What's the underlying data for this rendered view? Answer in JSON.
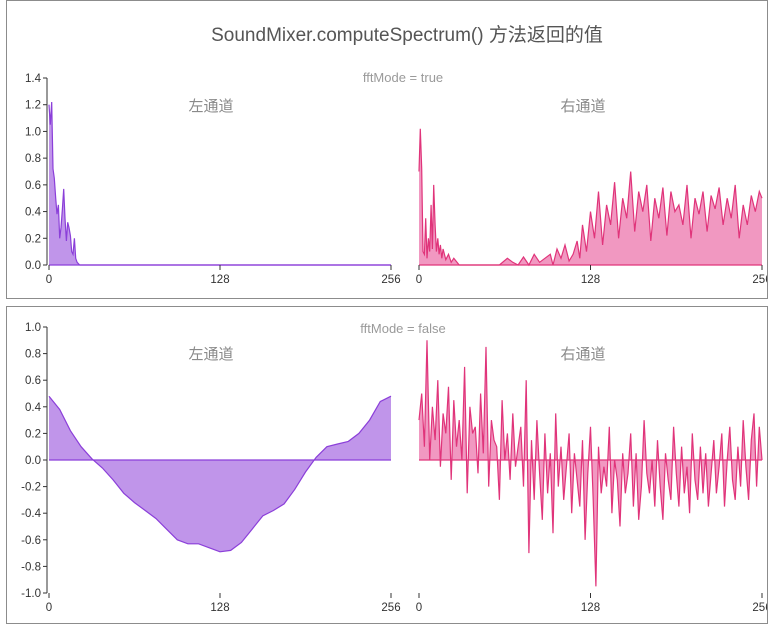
{
  "chart_title": "SoundMixer.computeSpectrum() 方法返回的值",
  "colors": {
    "left": "#8b3fd9",
    "left_fill": "#b98ae8",
    "right": "#e0347a",
    "right_fill": "#f08dba"
  },
  "chart_data": [
    {
      "type": "area",
      "subtitle": "fftMode = true",
      "x_ticks": [
        "0",
        "128",
        "256"
      ],
      "y_ticks": [
        "0.0",
        "0.2",
        "0.4",
        "0.6",
        "0.8",
        "1.0",
        "1.2",
        "1.4"
      ],
      "ylim": [
        0,
        1.4
      ],
      "xlim": [
        0,
        256
      ],
      "series": [
        {
          "name": "左通道",
          "x": [
            0,
            1,
            2,
            3,
            4,
            5,
            6,
            7,
            8,
            9,
            10,
            11,
            12,
            13,
            14,
            15,
            16,
            17,
            18,
            19,
            20,
            21,
            22,
            23,
            24,
            30,
            60,
            128,
            256
          ],
          "values": [
            1.2,
            1.05,
            1.22,
            0.72,
            0.65,
            0.5,
            0.38,
            0.45,
            0.2,
            0.28,
            0.42,
            0.57,
            0.35,
            0.18,
            0.32,
            0.28,
            0.22,
            0.1,
            0.08,
            0.2,
            0.05,
            0.02,
            0.01,
            0.0,
            0.0,
            0.0,
            0.0,
            0.0,
            0.0
          ]
        },
        {
          "name": "右通道",
          "x": [
            0,
            1,
            2,
            3,
            4,
            5,
            6,
            7,
            8,
            9,
            10,
            11,
            12,
            13,
            14,
            15,
            16,
            17,
            18,
            20,
            22,
            24,
            26,
            30,
            40,
            50,
            60,
            66,
            70,
            74,
            78,
            82,
            86,
            90,
            94,
            98,
            100,
            103,
            106,
            109,
            112,
            115,
            118,
            120,
            122,
            125,
            128,
            131,
            134,
            137,
            140,
            143,
            146,
            149,
            152,
            155,
            158,
            161,
            164,
            167,
            170,
            173,
            176,
            179,
            182,
            185,
            188,
            191,
            194,
            197,
            200,
            203,
            206,
            209,
            212,
            215,
            218,
            221,
            224,
            227,
            230,
            233,
            236,
            239,
            242,
            245,
            248,
            251,
            254,
            256
          ],
          "values": [
            0.7,
            1.02,
            0.72,
            0.1,
            0.08,
            0.35,
            0.05,
            0.2,
            0.1,
            0.45,
            0.12,
            0.6,
            0.3,
            0.1,
            0.2,
            0.08,
            0.15,
            0.05,
            0.12,
            0.04,
            0.08,
            0.02,
            0.05,
            0.0,
            0.0,
            0.0,
            0.0,
            0.05,
            0.02,
            0.0,
            0.06,
            0.0,
            0.08,
            0.02,
            0.05,
            0.08,
            0.0,
            0.12,
            0.05,
            0.15,
            0.03,
            0.08,
            0.18,
            0.05,
            0.3,
            0.1,
            0.4,
            0.2,
            0.55,
            0.15,
            0.45,
            0.3,
            0.62,
            0.2,
            0.5,
            0.35,
            0.7,
            0.25,
            0.55,
            0.4,
            0.6,
            0.18,
            0.5,
            0.35,
            0.58,
            0.22,
            0.55,
            0.4,
            0.45,
            0.3,
            0.6,
            0.2,
            0.5,
            0.38,
            0.55,
            0.25,
            0.52,
            0.42,
            0.58,
            0.3,
            0.5,
            0.35,
            0.6,
            0.2,
            0.45,
            0.3,
            0.52,
            0.4,
            0.55,
            0.5
          ]
        }
      ]
    },
    {
      "type": "area",
      "subtitle": "fftMode = false",
      "x_ticks": [
        "0",
        "128",
        "256"
      ],
      "y_ticks": [
        "1.0",
        "0.8",
        "0.6",
        "0.4",
        "0.2",
        "0.0",
        "-0.2",
        "-0.4",
        "-0.6",
        "-0.8",
        "-1.0"
      ],
      "ylim": [
        -1.0,
        1.0
      ],
      "xlim": [
        0,
        256
      ],
      "series": [
        {
          "name": "左通道",
          "x": [
            0,
            8,
            16,
            24,
            32,
            40,
            48,
            56,
            64,
            72,
            80,
            88,
            96,
            104,
            112,
            120,
            128,
            136,
            144,
            152,
            160,
            168,
            176,
            184,
            192,
            200,
            208,
            216,
            224,
            232,
            240,
            248,
            256
          ],
          "values": [
            0.48,
            0.38,
            0.22,
            0.1,
            0.01,
            -0.06,
            -0.15,
            -0.25,
            -0.32,
            -0.38,
            -0.44,
            -0.52,
            -0.6,
            -0.63,
            -0.63,
            -0.66,
            -0.69,
            -0.68,
            -0.62,
            -0.52,
            -0.42,
            -0.38,
            -0.33,
            -0.22,
            -0.09,
            0.02,
            0.1,
            0.12,
            0.14,
            0.2,
            0.3,
            0.44,
            0.48
          ]
        },
        {
          "name": "右通道",
          "x": [
            0,
            2,
            4,
            6,
            8,
            10,
            12,
            14,
            16,
            18,
            20,
            22,
            24,
            26,
            28,
            30,
            32,
            34,
            36,
            38,
            40,
            42,
            44,
            46,
            48,
            50,
            52,
            54,
            56,
            58,
            60,
            62,
            64,
            66,
            68,
            70,
            72,
            74,
            76,
            78,
            80,
            82,
            84,
            86,
            88,
            90,
            92,
            94,
            96,
            98,
            100,
            102,
            104,
            106,
            108,
            110,
            112,
            114,
            116,
            118,
            120,
            122,
            124,
            126,
            128,
            130,
            132,
            134,
            136,
            138,
            140,
            142,
            144,
            146,
            148,
            150,
            152,
            154,
            156,
            158,
            160,
            162,
            164,
            166,
            168,
            170,
            172,
            174,
            176,
            178,
            180,
            182,
            184,
            186,
            188,
            190,
            192,
            194,
            196,
            198,
            200,
            202,
            204,
            206,
            208,
            210,
            212,
            214,
            216,
            218,
            220,
            222,
            224,
            226,
            228,
            230,
            232,
            234,
            236,
            238,
            240,
            242,
            244,
            246,
            248,
            250,
            252,
            254,
            256
          ],
          "values": [
            0.3,
            0.5,
            0.1,
            0.9,
            0.0,
            0.4,
            0.15,
            0.6,
            -0.05,
            0.35,
            0.2,
            0.55,
            -0.15,
            0.45,
            0.1,
            0.3,
            0.0,
            0.7,
            -0.25,
            0.4,
            0.2,
            0.25,
            -0.1,
            0.5,
            0.05,
            0.85,
            -0.2,
            0.3,
            0.15,
            0.1,
            -0.3,
            0.45,
            0.0,
            0.2,
            -0.15,
            0.35,
            -0.05,
            0.1,
            0.25,
            -0.2,
            0.6,
            -0.7,
            0.15,
            -0.3,
            0.3,
            -0.1,
            -0.45,
            0.2,
            -0.25,
            0.05,
            -0.55,
            0.35,
            -0.2,
            0.1,
            -0.3,
            -0.05,
            0.2,
            -0.4,
            0.05,
            -0.15,
            -0.35,
            0.15,
            -0.6,
            -0.1,
            0.25,
            -0.3,
            -0.95,
            0.1,
            -0.25,
            -0.05,
            -0.2,
            0.25,
            -0.4,
            0.0,
            -0.15,
            -0.5,
            0.05,
            -0.25,
            -0.1,
            0.2,
            -0.35,
            0.05,
            -0.45,
            -0.2,
            0.3,
            -0.1,
            -0.25,
            0.0,
            -0.35,
            0.15,
            -0.2,
            -0.45,
            0.05,
            -0.15,
            -0.3,
            0.25,
            -0.1,
            -0.35,
            0.1,
            -0.25,
            -0.05,
            -0.4,
            0.2,
            -0.15,
            -0.3,
            0.1,
            -0.25,
            0.05,
            -0.35,
            -0.1,
            0.15,
            -0.25,
            -0.05,
            0.2,
            -0.35,
            0.0,
            0.25,
            -0.15,
            -0.3,
            0.1,
            -0.2,
            0.3,
            -0.05,
            -0.3,
            0.15,
            0.35,
            -0.2,
            0.25,
            0.0
          ]
        }
      ]
    }
  ]
}
